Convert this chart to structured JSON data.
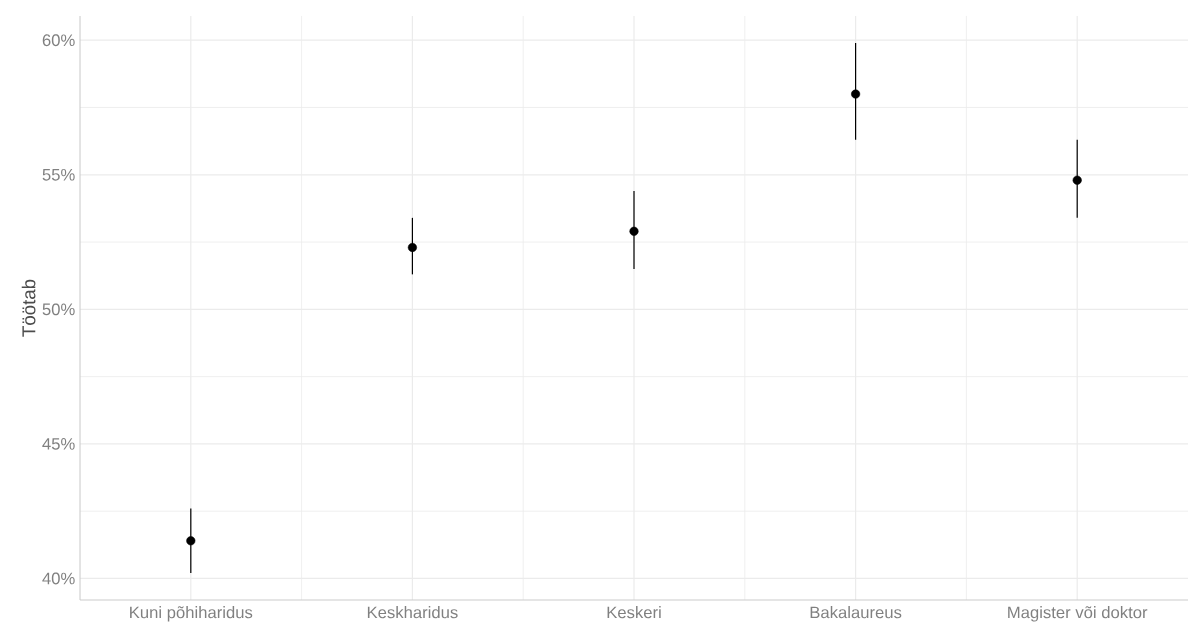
{
  "chart_data": {
    "type": "scatter",
    "ylabel": "Töötab",
    "categories": [
      "Kuni põhiharidus",
      "Keskharidus",
      "Keskeri",
      "Bakalaureus",
      "Magister või doktor"
    ],
    "values": [
      41.4,
      52.3,
      52.9,
      58.0,
      54.8
    ],
    "errors": [
      [
        40.2,
        42.6
      ],
      [
        51.3,
        53.4
      ],
      [
        51.5,
        54.4
      ],
      [
        56.3,
        59.9
      ],
      [
        53.4,
        56.3
      ]
    ],
    "color": "#000000",
    "grid": true,
    "ylim": [
      39.2,
      60.9
    ],
    "yticks": [
      {
        "value": 40,
        "label": "40%"
      },
      {
        "value": 45,
        "label": "45%"
      },
      {
        "value": 50,
        "label": "50%"
      },
      {
        "value": 55,
        "label": "55%"
      },
      {
        "value": 60,
        "label": "60%"
      }
    ]
  }
}
